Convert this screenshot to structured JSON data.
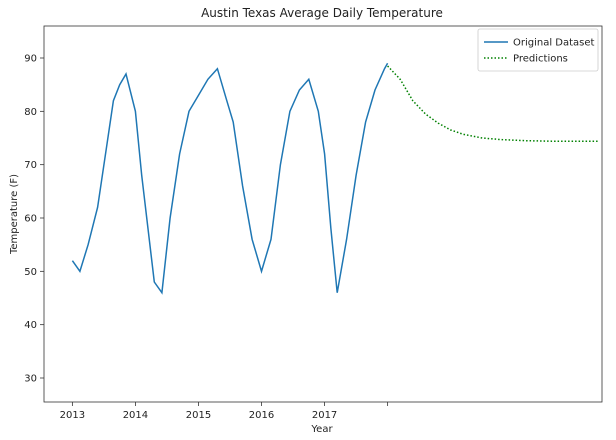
{
  "chart_data": {
    "type": "line",
    "title": "Austin Texas Average Daily Temperature",
    "xlabel": "Year",
    "ylabel": "Temperature (F)",
    "xlim": [
      2012.55,
      2021.4
    ],
    "ylim": [
      25.5,
      96
    ],
    "x_ticks": [
      2013,
      2014,
      2015,
      2016,
      2017,
      2018
    ],
    "x_tick_labels": [
      "2013",
      "2014",
      "2015",
      "2016",
      "2017",
      ""
    ],
    "y_ticks": [
      30,
      40,
      50,
      60,
      70,
      80,
      90
    ],
    "y_tick_labels": [
      "30",
      "40",
      "50",
      "60",
      "70",
      "80",
      "90"
    ],
    "grid": false,
    "legend_position": "top-right",
    "series": [
      {
        "name": "Original Dataset",
        "color": "#1f77b4",
        "style": "solid",
        "x": [
          2013.0,
          2013.12,
          2013.25,
          2013.4,
          2013.55,
          2013.65,
          2013.75,
          2013.85,
          2014.0,
          2014.1,
          2014.2,
          2014.3,
          2014.42,
          2014.55,
          2014.7,
          2014.85,
          2015.0,
          2015.15,
          2015.3,
          2015.45,
          2015.55,
          2015.7,
          2015.85,
          2016.0,
          2016.15,
          2016.3,
          2016.45,
          2016.6,
          2016.75,
          2016.9,
          2017.0,
          2017.1,
          2017.2,
          2017.35,
          2017.5,
          2017.65,
          2017.8,
          2017.95,
          2018.0
        ],
        "y": [
          52,
          50,
          55,
          62,
          74,
          82,
          85,
          87,
          80,
          68,
          58,
          48,
          46,
          60,
          72,
          80,
          83,
          86,
          88,
          82,
          78,
          66,
          56,
          50,
          56,
          70,
          80,
          84,
          86,
          80,
          72,
          58,
          46,
          56,
          68,
          78,
          84,
          88,
          89
        ]
      },
      {
        "name": "Predictions",
        "color": "#008000",
        "style": "dotted",
        "x": [
          2018.0,
          2018.2,
          2018.4,
          2018.6,
          2018.8,
          2019.0,
          2019.2,
          2019.5,
          2019.8,
          2020.2,
          2020.6,
          2021.0,
          2021.35
        ],
        "y": [
          88.5,
          86.0,
          82.0,
          79.5,
          77.8,
          76.5,
          75.7,
          75.0,
          74.7,
          74.5,
          74.4,
          74.4,
          74.4
        ]
      }
    ]
  }
}
